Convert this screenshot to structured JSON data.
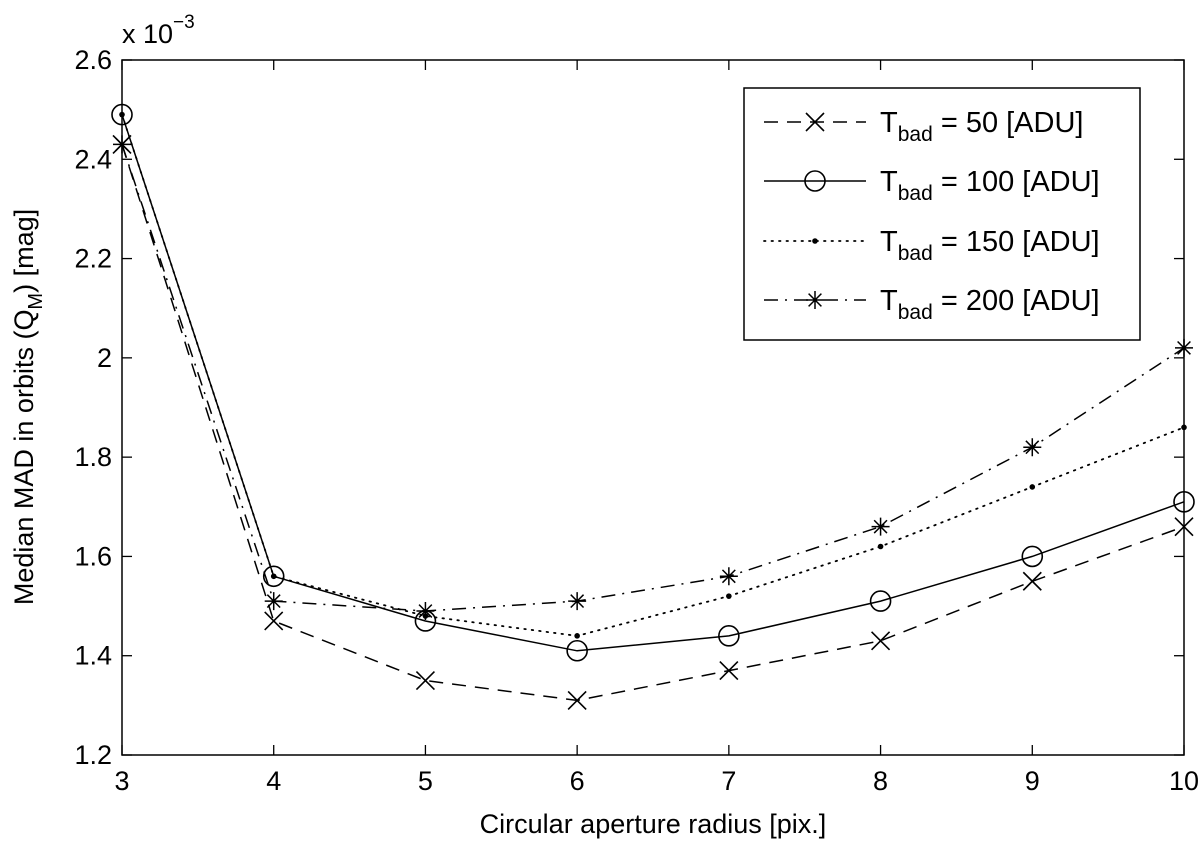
{
  "chart_data": {
    "type": "line",
    "xlabel": "Circular aperture radius [pix.]",
    "ylabel_main": "Median MAD in orbits (Q",
    "ylabel_sub": "M",
    "ylabel_end": ") [mag]",
    "exponent_prefix": "x 10",
    "exponent_power": "−3",
    "xlim": [
      3,
      10
    ],
    "ylim": [
      1.2,
      2.6
    ],
    "x_ticks": [
      "3",
      "4",
      "5",
      "6",
      "7",
      "8",
      "9",
      "10"
    ],
    "y_ticks": [
      "1.2",
      "1.4",
      "1.6",
      "1.8",
      "2",
      "2.2",
      "2.4",
      "2.6"
    ],
    "grid": false,
    "legend_position": "top-right",
    "x": [
      3,
      4,
      5,
      6,
      7,
      8,
      9,
      10
    ],
    "series": [
      {
        "name_main": "T",
        "name_sub": "bad",
        "name_rest": " = 50 [ADU]",
        "line": "dashed",
        "marker": "x",
        "values": [
          2.43,
          1.47,
          1.35,
          1.31,
          1.37,
          1.43,
          1.55,
          1.66
        ]
      },
      {
        "name_main": "T",
        "name_sub": "bad",
        "name_rest": " = 100 [ADU]",
        "line": "solid",
        "marker": "circle",
        "values": [
          2.49,
          1.56,
          1.47,
          1.41,
          1.44,
          1.51,
          1.6,
          1.71
        ]
      },
      {
        "name_main": "T",
        "name_sub": "bad",
        "name_rest": " = 150 [ADU]",
        "line": "dotted",
        "marker": "dot",
        "values": [
          2.49,
          1.56,
          1.48,
          1.44,
          1.52,
          1.62,
          1.74,
          1.86
        ]
      },
      {
        "name_main": "T",
        "name_sub": "bad",
        "name_rest": " = 200 [ADU]",
        "line": "dashdot",
        "marker": "asterisk",
        "values": [
          2.43,
          1.51,
          1.49,
          1.51,
          1.56,
          1.66,
          1.82,
          2.02
        ]
      }
    ],
    "colors": {
      "line": "#000000",
      "background": "#ffffff"
    }
  }
}
